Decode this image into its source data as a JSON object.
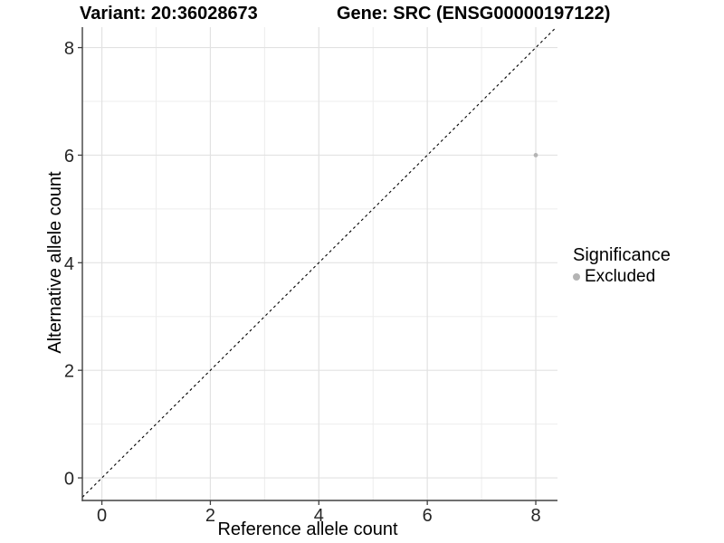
{
  "title": {
    "variant": "Variant: 20:36028673",
    "gene": "Gene: SRC (ENSG00000197122)"
  },
  "axes": {
    "x_label": "Reference allele count",
    "y_label": "Alternative allele count"
  },
  "legend": {
    "title": "Significance",
    "entries": [
      {
        "label": "Excluded",
        "color": "#b4b4b4"
      }
    ]
  },
  "chart_data": {
    "type": "scatter",
    "title_left": "Variant: 20:36028673",
    "title_right": "Gene: SRC (ENSG00000197122)",
    "xlabel": "Reference allele count",
    "ylabel": "Alternative allele count",
    "xlim": [
      -0.36,
      8.4
    ],
    "ylim": [
      -0.42,
      8.38
    ],
    "x_ticks": [
      0,
      2,
      4,
      6,
      8
    ],
    "y_ticks": [
      0,
      2,
      4,
      6,
      8
    ],
    "x_minor_ticks": [
      1,
      3,
      5,
      7
    ],
    "y_minor_ticks": [
      1,
      3,
      5,
      7
    ],
    "grid": "major-and-minor",
    "reference_line": {
      "type": "identity",
      "slope": 1,
      "intercept": 0,
      "style": "dashed",
      "color": "#000000"
    },
    "series": [
      {
        "name": "Excluded",
        "color": "#b4b4b4",
        "points": [
          {
            "x": 8,
            "y": 6
          }
        ]
      }
    ],
    "legend": {
      "title": "Significance",
      "position": "right",
      "entries": [
        {
          "label": "Excluded",
          "color": "#b4b4b4"
        }
      ]
    }
  },
  "colors": {
    "background": "#ffffff",
    "grid_major": "#e2e2e2",
    "grid_minor": "#ededed",
    "axis_line": "#404040",
    "tick_text": "#262626",
    "point": "#b4b4b4"
  }
}
